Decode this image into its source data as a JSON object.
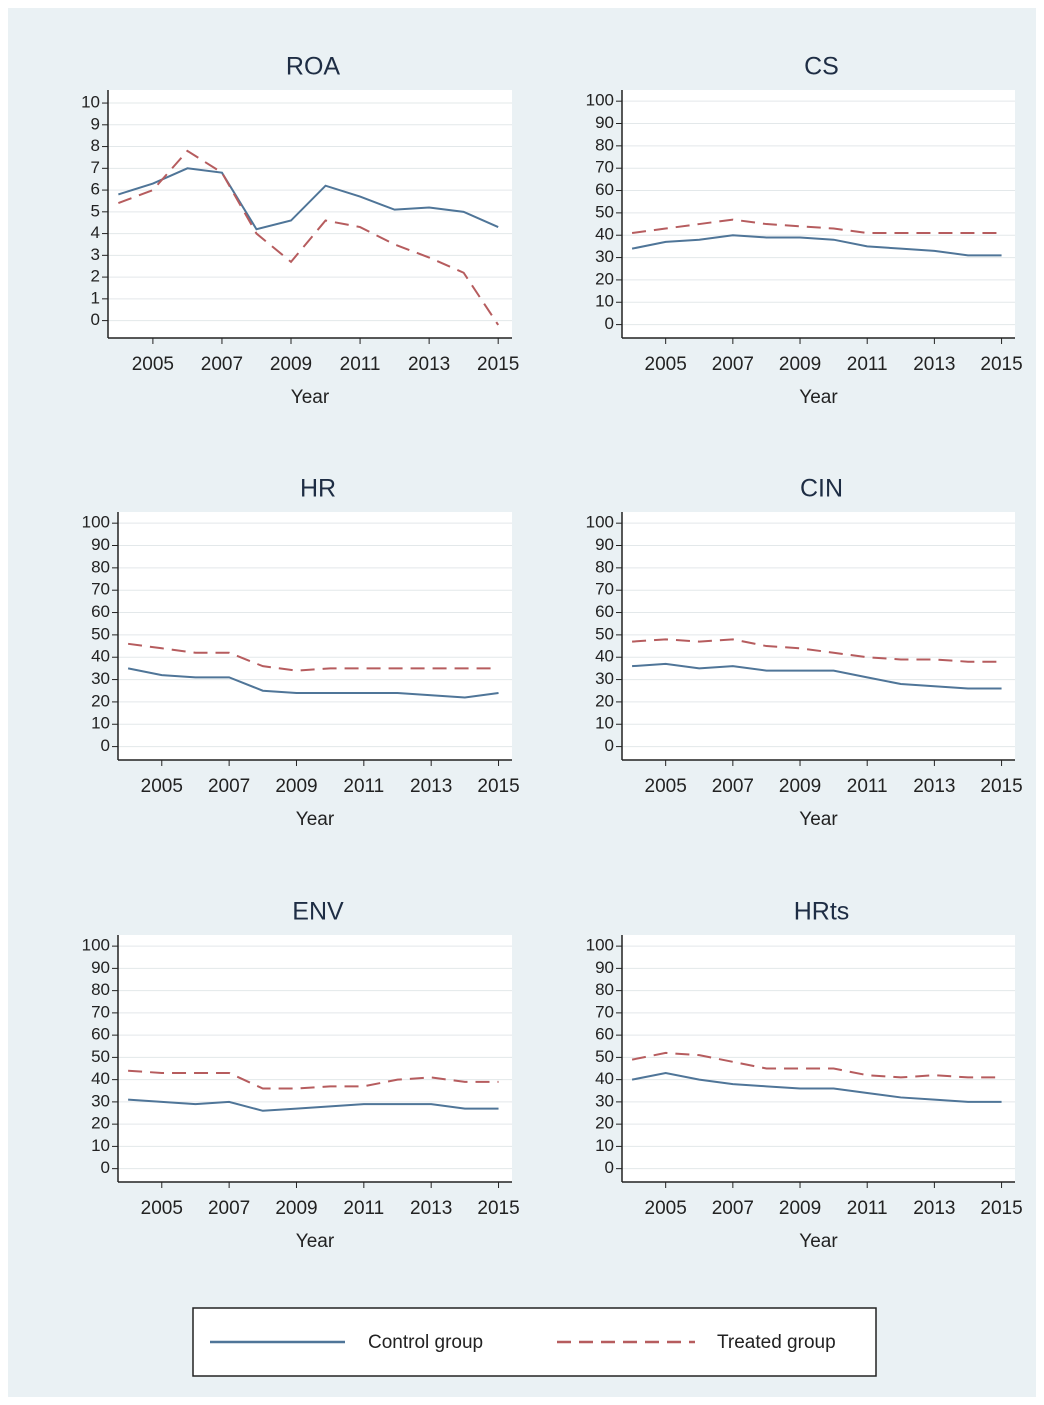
{
  "chart_data": [
    {
      "type": "line",
      "title": "ROA",
      "xlabel": "Year",
      "x": [
        2004,
        2005,
        2006,
        2007,
        2008,
        2009,
        2010,
        2011,
        2012,
        2013,
        2014,
        2015
      ],
      "xlim": [
        2003.7,
        2015.4
      ],
      "xticks": [
        2005,
        2007,
        2009,
        2011,
        2013,
        2015
      ],
      "ylim": [
        -0.8,
        10.6
      ],
      "yticks": [
        0,
        1,
        2,
        3,
        4,
        5,
        6,
        7,
        8,
        9,
        10
      ],
      "grid": true,
      "series": [
        {
          "name": "Control group",
          "color": "#4f7598",
          "linestyle": "solid",
          "values": [
            5.8,
            6.3,
            7.0,
            6.8,
            4.2,
            4.6,
            6.2,
            5.7,
            5.1,
            5.2,
            5.0,
            4.3
          ]
        },
        {
          "name": "Treated group",
          "color": "#b65c5e",
          "linestyle": "dashed",
          "values": [
            5.4,
            6.0,
            7.8,
            6.8,
            4.0,
            2.7,
            4.6,
            4.3,
            3.5,
            2.9,
            2.2,
            -0.2
          ]
        }
      ]
    },
    {
      "type": "line",
      "title": "CS",
      "xlabel": "Year",
      "x": [
        2004,
        2005,
        2006,
        2007,
        2008,
        2009,
        2010,
        2011,
        2012,
        2013,
        2014,
        2015
      ],
      "xlim": [
        2003.7,
        2015.4
      ],
      "xticks": [
        2005,
        2007,
        2009,
        2011,
        2013,
        2015
      ],
      "ylim": [
        -6,
        105
      ],
      "yticks": [
        0,
        10,
        20,
        30,
        40,
        50,
        60,
        70,
        80,
        90,
        100
      ],
      "grid": true,
      "series": [
        {
          "name": "Control group",
          "color": "#4f7598",
          "linestyle": "solid",
          "values": [
            34,
            37,
            38,
            40,
            39,
            39,
            38,
            35,
            34,
            33,
            31,
            31
          ]
        },
        {
          "name": "Treated group",
          "color": "#b65c5e",
          "linestyle": "dashed",
          "values": [
            41,
            43,
            45,
            47,
            45,
            44,
            43,
            41,
            41,
            41,
            41,
            41
          ]
        }
      ]
    },
    {
      "type": "line",
      "title": "HR",
      "xlabel": "Year",
      "x": [
        2004,
        2005,
        2006,
        2007,
        2008,
        2009,
        2010,
        2011,
        2012,
        2013,
        2014,
        2015
      ],
      "xlim": [
        2003.7,
        2015.4
      ],
      "xticks": [
        2005,
        2007,
        2009,
        2011,
        2013,
        2015
      ],
      "ylim": [
        -6,
        105
      ],
      "yticks": [
        0,
        10,
        20,
        30,
        40,
        50,
        60,
        70,
        80,
        90,
        100
      ],
      "grid": true,
      "series": [
        {
          "name": "Control group",
          "color": "#4f7598",
          "linestyle": "solid",
          "values": [
            35,
            32,
            31,
            31,
            25,
            24,
            24,
            24,
            24,
            23,
            22,
            24
          ]
        },
        {
          "name": "Treated group",
          "color": "#b65c5e",
          "linestyle": "dashed",
          "values": [
            46,
            44,
            42,
            42,
            36,
            34,
            35,
            35,
            35,
            35,
            35,
            35
          ]
        }
      ]
    },
    {
      "type": "line",
      "title": "CIN",
      "xlabel": "Year",
      "x": [
        2004,
        2005,
        2006,
        2007,
        2008,
        2009,
        2010,
        2011,
        2012,
        2013,
        2014,
        2015
      ],
      "xlim": [
        2003.7,
        2015.4
      ],
      "xticks": [
        2005,
        2007,
        2009,
        2011,
        2013,
        2015
      ],
      "ylim": [
        -6,
        105
      ],
      "yticks": [
        0,
        10,
        20,
        30,
        40,
        50,
        60,
        70,
        80,
        90,
        100
      ],
      "grid": true,
      "series": [
        {
          "name": "Control group",
          "color": "#4f7598",
          "linestyle": "solid",
          "values": [
            36,
            37,
            35,
            36,
            34,
            34,
            34,
            31,
            28,
            27,
            26,
            26
          ]
        },
        {
          "name": "Treated group",
          "color": "#b65c5e",
          "linestyle": "dashed",
          "values": [
            47,
            48,
            47,
            48,
            45,
            44,
            42,
            40,
            39,
            39,
            38,
            38
          ]
        }
      ]
    },
    {
      "type": "line",
      "title": "ENV",
      "xlabel": "Year",
      "x": [
        2004,
        2005,
        2006,
        2007,
        2008,
        2009,
        2010,
        2011,
        2012,
        2013,
        2014,
        2015
      ],
      "xlim": [
        2003.7,
        2015.4
      ],
      "xticks": [
        2005,
        2007,
        2009,
        2011,
        2013,
        2015
      ],
      "ylim": [
        -6,
        105
      ],
      "yticks": [
        0,
        10,
        20,
        30,
        40,
        50,
        60,
        70,
        80,
        90,
        100
      ],
      "grid": true,
      "series": [
        {
          "name": "Control group",
          "color": "#4f7598",
          "linestyle": "solid",
          "values": [
            31,
            30,
            29,
            30,
            26,
            27,
            28,
            29,
            29,
            29,
            27,
            27
          ]
        },
        {
          "name": "Treated group",
          "color": "#b65c5e",
          "linestyle": "dashed",
          "values": [
            44,
            43,
            43,
            43,
            36,
            36,
            37,
            37,
            40,
            41,
            39,
            39
          ]
        }
      ]
    },
    {
      "type": "line",
      "title": "HRts",
      "xlabel": "Year",
      "x": [
        2004,
        2005,
        2006,
        2007,
        2008,
        2009,
        2010,
        2011,
        2012,
        2013,
        2014,
        2015
      ],
      "xlim": [
        2003.7,
        2015.4
      ],
      "xticks": [
        2005,
        2007,
        2009,
        2011,
        2013,
        2015
      ],
      "ylim": [
        -6,
        105
      ],
      "yticks": [
        0,
        10,
        20,
        30,
        40,
        50,
        60,
        70,
        80,
        90,
        100
      ],
      "grid": true,
      "series": [
        {
          "name": "Control group",
          "color": "#4f7598",
          "linestyle": "solid",
          "values": [
            40,
            43,
            40,
            38,
            37,
            36,
            36,
            34,
            32,
            31,
            30,
            30
          ]
        },
        {
          "name": "Treated group",
          "color": "#b65c5e",
          "linestyle": "dashed",
          "values": [
            49,
            52,
            51,
            48,
            45,
            45,
            45,
            42,
            41,
            42,
            41,
            41
          ]
        }
      ]
    }
  ]
}
